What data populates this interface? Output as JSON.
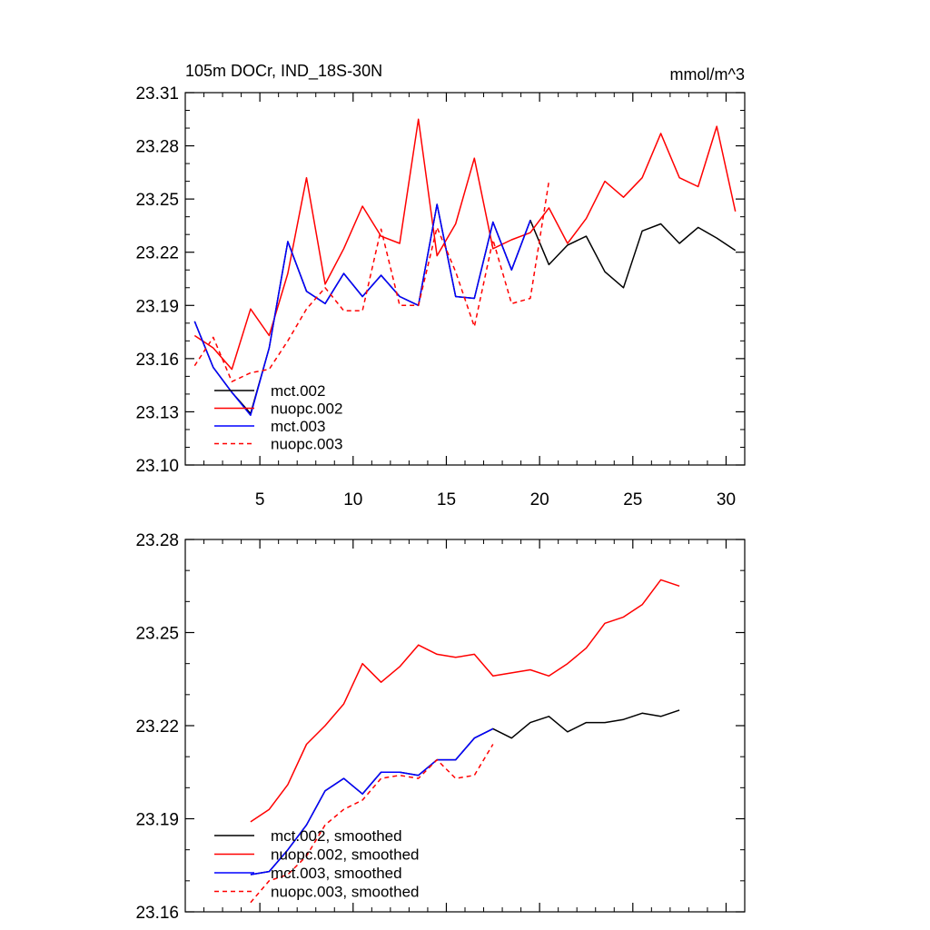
{
  "chart_data": [
    {
      "type": "line",
      "title": "105m DOCr, IND_18S-30N",
      "units": "mmol/m^3",
      "xlim": [
        1,
        31
      ],
      "ylim": [
        23.1,
        23.31
      ],
      "xticks": [
        5,
        10,
        15,
        20,
        25,
        30
      ],
      "xtick_labels": [
        "5",
        "10",
        "15",
        "20",
        "25",
        "30"
      ],
      "yticks": [
        23.1,
        23.13,
        23.16,
        23.19,
        23.22,
        23.25,
        23.28,
        23.31
      ],
      "ytick_labels": [
        "23.10",
        "23.13",
        "23.16",
        "23.19",
        "23.22",
        "23.25",
        "23.28",
        "23.31"
      ],
      "series": [
        {
          "name": "mct.002",
          "color": "#000000",
          "dash": "solid",
          "x": [
            1.5,
            2.5,
            3.5,
            4.5,
            5.5,
            6.5,
            7.5,
            8.5,
            9.5,
            10.5,
            11.5,
            12.5,
            13.5,
            14.5,
            15.5,
            16.5,
            17.5,
            18.5,
            19.5,
            20.5,
            21.5,
            22.5,
            23.5,
            24.5,
            25.5,
            26.5,
            27.5,
            28.5,
            29.5,
            30.5
          ],
          "values": [
            23.181,
            23.155,
            23.141,
            23.129,
            23.166,
            23.226,
            23.198,
            23.191,
            23.208,
            23.195,
            23.207,
            23.195,
            23.19,
            23.247,
            23.195,
            23.194,
            23.237,
            23.21,
            23.238,
            23.213,
            23.224,
            23.229,
            23.209,
            23.2,
            23.232,
            23.236,
            23.225,
            23.234,
            23.228,
            23.221
          ]
        },
        {
          "name": "nuopc.002",
          "color": "#ff0000",
          "dash": "solid",
          "x": [
            1.5,
            2.5,
            3.5,
            4.5,
            5.5,
            6.5,
            7.5,
            8.5,
            9.5,
            10.5,
            11.5,
            12.5,
            13.5,
            14.5,
            15.5,
            16.5,
            17.5,
            18.5,
            19.5,
            20.5,
            21.5,
            22.5,
            23.5,
            24.5,
            25.5,
            26.5,
            27.5,
            28.5,
            29.5,
            30.5
          ],
          "values": [
            23.173,
            23.166,
            23.154,
            23.188,
            23.173,
            23.208,
            23.262,
            23.202,
            23.222,
            23.246,
            23.229,
            23.225,
            23.295,
            23.218,
            23.236,
            23.273,
            23.222,
            23.227,
            23.231,
            23.245,
            23.225,
            23.239,
            23.26,
            23.251,
            23.262,
            23.287,
            23.262,
            23.257,
            23.291,
            23.243
          ]
        },
        {
          "name": "mct.003",
          "color": "#0000ff",
          "dash": "solid",
          "x": [
            1.5,
            2.5,
            3.5,
            4.5,
            5.5,
            6.5,
            7.5,
            8.5,
            9.5,
            10.5,
            11.5,
            12.5,
            13.5,
            14.5,
            15.5,
            16.5,
            17.5,
            18.5,
            19.5
          ],
          "values": [
            23.181,
            23.155,
            23.141,
            23.128,
            23.166,
            23.226,
            23.198,
            23.191,
            23.208,
            23.195,
            23.207,
            23.195,
            23.19,
            23.247,
            23.195,
            23.194,
            23.237,
            23.21,
            23.238
          ]
        },
        {
          "name": "nuopc.003",
          "color": "#ff0000",
          "dash": "dashed",
          "x": [
            1.5,
            2.5,
            3.5,
            4.5,
            5.5,
            6.5,
            7.5,
            8.5,
            9.5,
            10.5,
            11.5,
            12.5,
            13.5,
            14.5,
            15.5,
            16.5,
            17.5,
            18.5,
            19.5,
            20.5
          ],
          "values": [
            23.156,
            23.172,
            23.147,
            23.152,
            23.154,
            23.17,
            23.188,
            23.2,
            23.187,
            23.187,
            23.233,
            23.19,
            23.19,
            23.234,
            23.209,
            23.178,
            23.227,
            23.191,
            23.194,
            23.26
          ]
        }
      ]
    },
    {
      "type": "line",
      "title": "",
      "xlim": [
        1,
        31
      ],
      "ylim": [
        23.16,
        23.28
      ],
      "xticks": [
        5,
        10,
        15,
        20,
        25,
        30
      ],
      "xtick_labels": [],
      "yticks": [
        23.16,
        23.19,
        23.22,
        23.25,
        23.28
      ],
      "ytick_labels": [
        "23.16",
        "23.19",
        "23.22",
        "23.25",
        "23.28"
      ],
      "series": [
        {
          "name": "mct.002, smoothed",
          "color": "#000000",
          "dash": "solid",
          "x": [
            4.5,
            5.5,
            6.5,
            7.5,
            8.5,
            9.5,
            10.5,
            11.5,
            12.5,
            13.5,
            14.5,
            15.5,
            16.5,
            17.5,
            18.5,
            19.5,
            20.5,
            21.5,
            22.5,
            23.5,
            24.5,
            25.5,
            26.5,
            27.5
          ],
          "values": [
            23.172,
            23.173,
            23.18,
            23.188,
            23.199,
            23.203,
            23.198,
            23.205,
            23.205,
            23.204,
            23.209,
            23.209,
            23.216,
            23.219,
            23.216,
            23.221,
            23.223,
            23.218,
            23.221,
            23.221,
            23.222,
            23.224,
            23.223,
            23.225
          ]
        },
        {
          "name": "nuopc.002, smoothed",
          "color": "#ff0000",
          "dash": "solid",
          "x": [
            4.5,
            5.5,
            6.5,
            7.5,
            8.5,
            9.5,
            10.5,
            11.5,
            12.5,
            13.5,
            14.5,
            15.5,
            16.5,
            17.5,
            18.5,
            19.5,
            20.5,
            21.5,
            22.5,
            23.5,
            24.5,
            25.5,
            26.5,
            27.5
          ],
          "values": [
            23.189,
            23.193,
            23.201,
            23.214,
            23.22,
            23.227,
            23.24,
            23.234,
            23.239,
            23.246,
            23.243,
            23.242,
            23.243,
            23.236,
            23.237,
            23.238,
            23.236,
            23.24,
            23.245,
            23.253,
            23.255,
            23.259,
            23.267,
            23.265
          ]
        },
        {
          "name": "mct.003, smoothed",
          "color": "#0000ff",
          "dash": "solid",
          "x": [
            4.5,
            5.5,
            6.5,
            7.5,
            8.5,
            9.5,
            10.5,
            11.5,
            12.5,
            13.5,
            14.5,
            15.5,
            16.5,
            17.5
          ],
          "values": [
            23.172,
            23.173,
            23.18,
            23.188,
            23.199,
            23.203,
            23.198,
            23.205,
            23.205,
            23.204,
            23.209,
            23.209,
            23.216,
            23.219
          ]
        },
        {
          "name": "nuopc.003, smoothed",
          "color": "#ff0000",
          "dash": "dashed",
          "x": [
            4.5,
            5.5,
            6.5,
            7.5,
            8.5,
            9.5,
            10.5,
            11.5,
            12.5,
            13.5,
            14.5,
            15.5,
            16.5,
            17.5
          ],
          "values": [
            23.163,
            23.17,
            23.172,
            23.178,
            23.188,
            23.193,
            23.196,
            23.203,
            23.204,
            23.203,
            23.209,
            23.203,
            23.204,
            23.214
          ]
        }
      ]
    }
  ]
}
